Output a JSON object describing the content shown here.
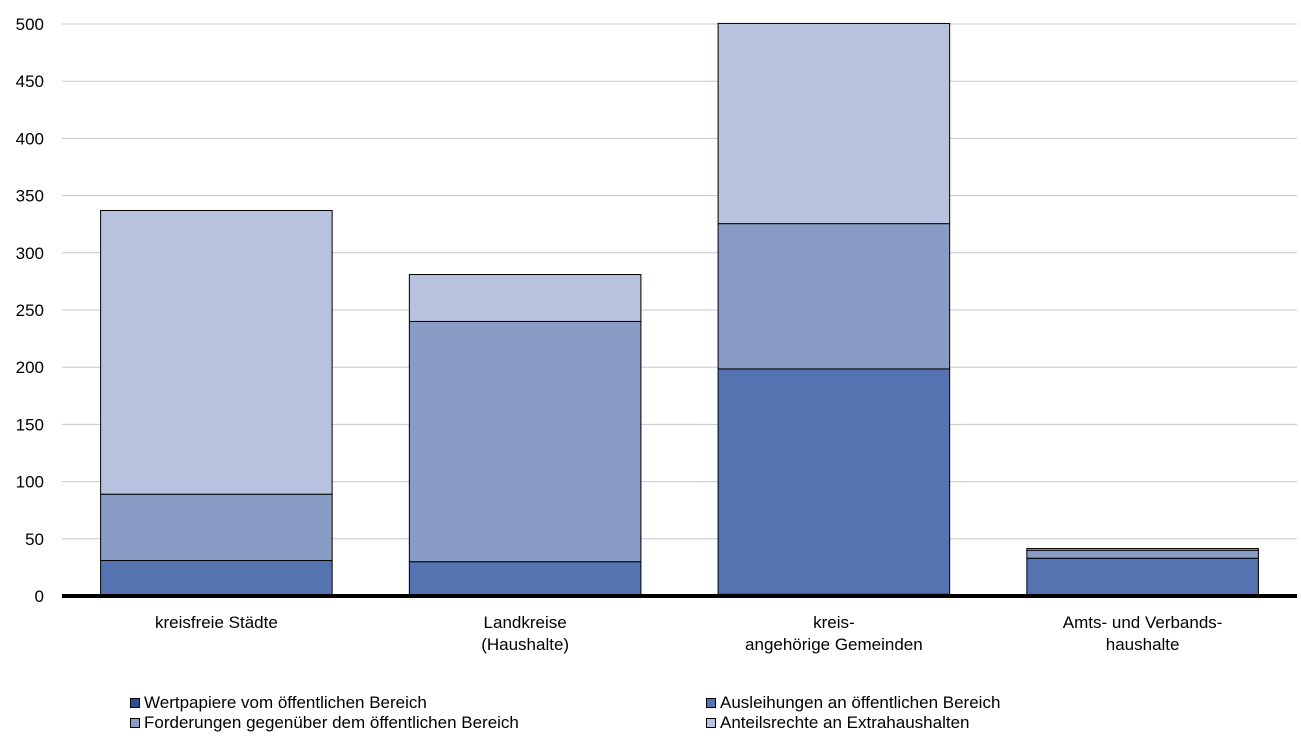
{
  "chart_data": {
    "type": "bar",
    "stacked": true,
    "categories": [
      [
        "kreisfreie Städte"
      ],
      [
        "Landkreise",
        "(Haushalte)"
      ],
      [
        "kreis-",
        "angehörige Gemeinden"
      ],
      [
        "Amts- und Verbands-",
        "haushalte"
      ]
    ],
    "series": [
      {
        "name": "Wertpapiere vom öffentlichen Bereich",
        "color": "#2f4d96",
        "values": [
          0,
          0,
          1.5,
          0
        ]
      },
      {
        "name": "Ausleihungen an öffentlichen Bereich",
        "color": "#5573b1",
        "values": [
          31,
          30,
          197,
          33
        ]
      },
      {
        "name": "Forderungen gegenüber dem öffentlichen Bereich",
        "color": "#899cc6",
        "values": [
          58,
          210,
          127,
          7
        ]
      },
      {
        "name": "Anteilsrechte an Extrahaushalten",
        "color": "#b7c3de",
        "values": [
          248,
          41,
          175,
          1.5
        ]
      }
    ],
    "ylim": [
      0,
      500
    ],
    "yticks": [
      "0",
      "50",
      "100",
      "150",
      "200",
      "250",
      "300",
      "350",
      "400",
      "450",
      "500"
    ],
    "grid": true,
    "legend_position": "bottom"
  }
}
